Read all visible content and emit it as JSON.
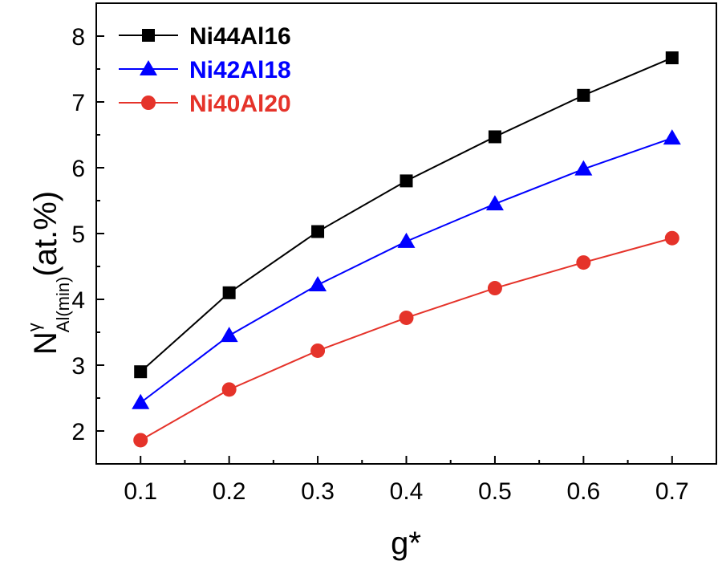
{
  "chart_data": {
    "type": "line",
    "xlabel": "g*",
    "ylabel": {
      "main": "N",
      "superscript": "γ",
      "subscript": "Al(min)",
      "suffix": "(at.%)"
    },
    "xlim": [
      0.05,
      0.75
    ],
    "ylim": [
      1.5,
      8.5
    ],
    "x": [
      0.1,
      0.2,
      0.3,
      0.4,
      0.5,
      0.6,
      0.7
    ],
    "x_tick_labels": [
      "0.1",
      "0.2",
      "0.3",
      "0.4",
      "0.5",
      "0.6",
      "0.7"
    ],
    "y_ticks": [
      2,
      3,
      4,
      5,
      6,
      7,
      8
    ],
    "y_tick_labels": [
      "2",
      "3",
      "4",
      "5",
      "6",
      "7",
      "8"
    ],
    "grid": false,
    "legend_position": "top-left",
    "series": [
      {
        "name": "Ni44Al16",
        "color": "#000000",
        "marker": "square",
        "values": [
          2.9,
          4.1,
          5.03,
          5.8,
          6.47,
          7.1,
          7.67
        ]
      },
      {
        "name": "Ni42Al18",
        "color": "#0000ff",
        "marker": "triangle",
        "values": [
          2.43,
          3.45,
          4.22,
          4.88,
          5.45,
          5.98,
          6.45
        ]
      },
      {
        "name": "Ni40Al20",
        "color": "#e5332a",
        "marker": "circle",
        "values": [
          1.86,
          2.63,
          3.22,
          3.72,
          4.17,
          4.56,
          4.93
        ]
      }
    ]
  }
}
